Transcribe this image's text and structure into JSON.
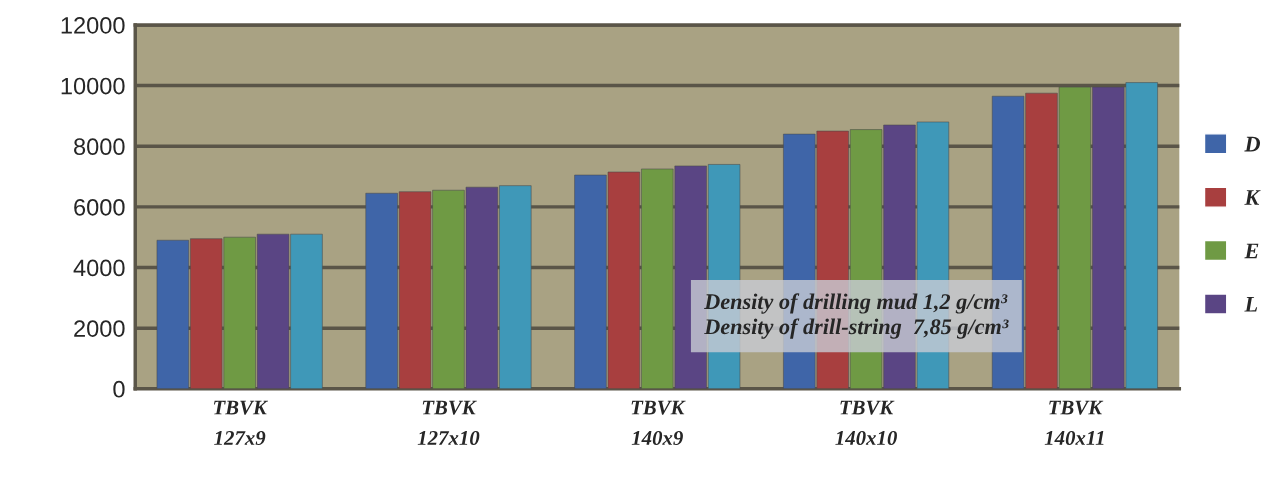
{
  "chart_data": {
    "type": "bar",
    "categories": [
      "TBVK\n127x9",
      "TBVK\n127x10",
      "TBVK\n140x9",
      "TBVK\n140x10",
      "TBVK\n140x11"
    ],
    "series": [
      {
        "name": "D",
        "color": "#3f65a8",
        "values": [
          4900,
          6450,
          7050,
          8400,
          9650
        ]
      },
      {
        "name": "K",
        "color": "#a83f3f",
        "values": [
          4950,
          6500,
          7150,
          8500,
          9750
        ]
      },
      {
        "name": "E",
        "color": "#6f9a44",
        "values": [
          5000,
          6550,
          7250,
          8550,
          9950
        ]
      },
      {
        "name": "L",
        "color": "#5a4584",
        "values": [
          5100,
          6650,
          7350,
          8700,
          9950
        ]
      },
      {
        "color": "#3f98b8",
        "values": [
          5100,
          6700,
          7400,
          8800,
          10100
        ]
      }
    ],
    "ylim": [
      0,
      12000
    ],
    "yticks": [
      0,
      2000,
      4000,
      6000,
      8000,
      10000,
      12000
    ],
    "grid": "y",
    "legend": "right",
    "annotations": [
      "Density of drilling mud 1,2 g/cm³",
      "Density of drill-string  7,85 g/cm³"
    ]
  }
}
